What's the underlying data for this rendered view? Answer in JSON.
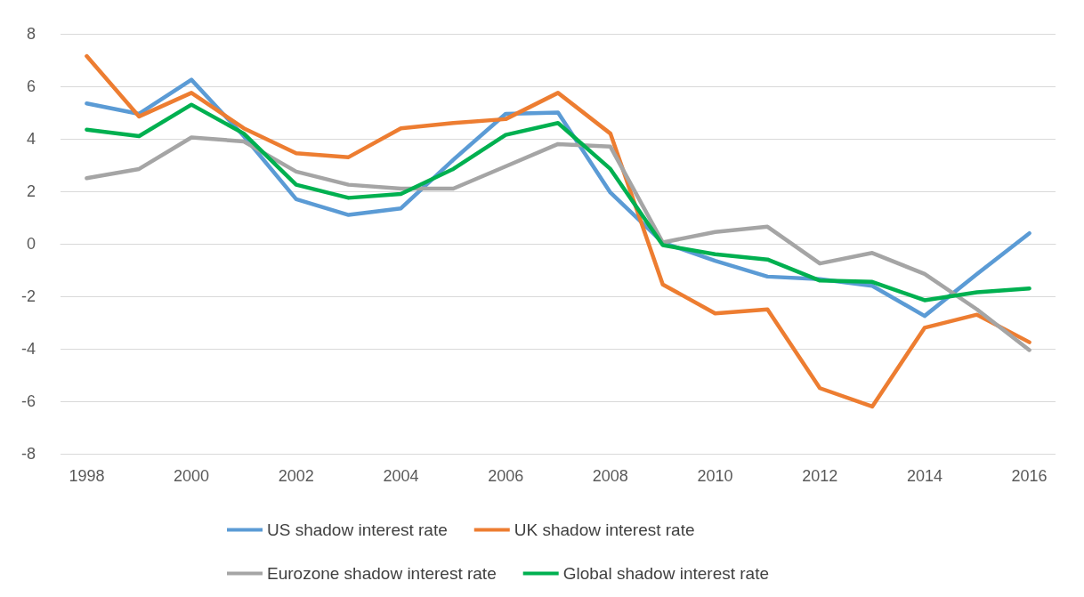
{
  "chart_data": {
    "type": "line",
    "categories": [
      "1998",
      null,
      "2000",
      null,
      "2002",
      null,
      "2004",
      null,
      "2006",
      null,
      "2008",
      null,
      "2010",
      null,
      "2012",
      null,
      "2014",
      null,
      "2016"
    ],
    "series": [
      {
        "name": "US shadow interest rate",
        "color": "#5b9bd5",
        "values": [
          5.35,
          4.95,
          6.25,
          4.1,
          1.7,
          1.1,
          1.35,
          3.2,
          4.95,
          5.0,
          1.95,
          0.05,
          -0.65,
          -1.25,
          -1.35,
          -1.6,
          -2.75,
          -1.15,
          0.4
        ]
      },
      {
        "name": "UK shadow interest rate",
        "color": "#ed7d31",
        "values": [
          7.15,
          4.85,
          5.75,
          4.4,
          3.45,
          3.3,
          4.4,
          4.6,
          4.75,
          5.75,
          4.2,
          -1.55,
          -2.65,
          -2.5,
          -5.5,
          -6.2,
          -3.2,
          -2.7,
          -3.75
        ]
      },
      {
        "name": "Eurozone shadow interest rate",
        "color": "#a5a5a5",
        "values": [
          2.5,
          2.85,
          4.05,
          3.9,
          2.75,
          2.25,
          2.1,
          2.1,
          2.95,
          3.8,
          3.7,
          0.05,
          0.45,
          0.65,
          -0.75,
          -0.35,
          -1.15,
          -2.5,
          -4.05
        ]
      },
      {
        "name": "Global shadow interest rate",
        "color": "#00b050",
        "values": [
          4.35,
          4.1,
          5.3,
          4.2,
          2.25,
          1.75,
          1.9,
          2.85,
          4.15,
          4.6,
          2.85,
          -0.05,
          -0.4,
          -0.6,
          -1.4,
          -1.45,
          -2.15,
          -1.85,
          -1.7
        ]
      }
    ],
    "ylim": [
      -8,
      8
    ],
    "yticks": [
      -8,
      -6,
      -4,
      -2,
      0,
      2,
      4,
      6,
      8
    ],
    "grid": "y",
    "legend": "bottom",
    "marker": "none",
    "line_style": "solid"
  }
}
